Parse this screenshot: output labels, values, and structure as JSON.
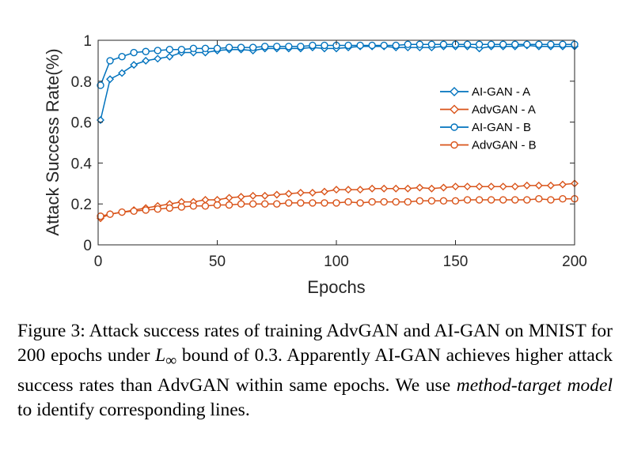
{
  "chart_data": {
    "type": "line",
    "xlabel": "Epochs",
    "ylabel": "Attack Success Rate(%)",
    "xlim": [
      0,
      200
    ],
    "ylim": [
      0,
      1
    ],
    "xticks": [
      "0",
      "50",
      "100",
      "150",
      "200"
    ],
    "yticks": [
      "0",
      "0.2",
      "0.4",
      "0.6",
      "0.8",
      "1"
    ],
    "grid": false,
    "legend_position": "right",
    "x": [
      1,
      5,
      10,
      15,
      20,
      25,
      30,
      35,
      40,
      45,
      50,
      55,
      60,
      65,
      70,
      75,
      80,
      85,
      90,
      95,
      100,
      105,
      110,
      115,
      120,
      125,
      130,
      135,
      140,
      145,
      150,
      155,
      160,
      165,
      170,
      175,
      180,
      185,
      190,
      195,
      200
    ],
    "series": [
      {
        "name": "AI-GAN - A",
        "marker": "diamond",
        "color": "#0072BD",
        "values": [
          0.61,
          0.81,
          0.84,
          0.88,
          0.9,
          0.91,
          0.92,
          0.94,
          0.94,
          0.94,
          0.95,
          0.955,
          0.955,
          0.95,
          0.96,
          0.96,
          0.96,
          0.96,
          0.965,
          0.96,
          0.96,
          0.965,
          0.97,
          0.97,
          0.97,
          0.965,
          0.965,
          0.965,
          0.965,
          0.97,
          0.97,
          0.97,
          0.96,
          0.97,
          0.97,
          0.97,
          0.975,
          0.97,
          0.97,
          0.97,
          0.97
        ]
      },
      {
        "name": "AdvGAN - A",
        "marker": "diamond",
        "color": "#D95319",
        "values": [
          0.13,
          0.15,
          0.16,
          0.17,
          0.18,
          0.19,
          0.2,
          0.21,
          0.21,
          0.22,
          0.22,
          0.23,
          0.235,
          0.24,
          0.24,
          0.245,
          0.25,
          0.255,
          0.255,
          0.26,
          0.27,
          0.27,
          0.27,
          0.275,
          0.275,
          0.275,
          0.275,
          0.28,
          0.275,
          0.28,
          0.285,
          0.285,
          0.285,
          0.285,
          0.285,
          0.285,
          0.29,
          0.29,
          0.29,
          0.295,
          0.3
        ]
      },
      {
        "name": "AI-GAN - B",
        "marker": "circle",
        "color": "#0072BD",
        "values": [
          0.78,
          0.9,
          0.92,
          0.94,
          0.945,
          0.95,
          0.955,
          0.955,
          0.96,
          0.96,
          0.96,
          0.965,
          0.965,
          0.965,
          0.97,
          0.97,
          0.97,
          0.97,
          0.975,
          0.975,
          0.975,
          0.975,
          0.975,
          0.975,
          0.975,
          0.975,
          0.98,
          0.98,
          0.98,
          0.98,
          0.98,
          0.98,
          0.98,
          0.98,
          0.98,
          0.98,
          0.98,
          0.98,
          0.98,
          0.98,
          0.98
        ]
      },
      {
        "name": "AdvGAN - B",
        "marker": "circle",
        "color": "#D95319",
        "values": [
          0.14,
          0.15,
          0.16,
          0.165,
          0.17,
          0.175,
          0.18,
          0.185,
          0.19,
          0.19,
          0.195,
          0.195,
          0.2,
          0.2,
          0.2,
          0.2,
          0.205,
          0.205,
          0.205,
          0.205,
          0.205,
          0.21,
          0.205,
          0.21,
          0.21,
          0.21,
          0.21,
          0.215,
          0.215,
          0.215,
          0.215,
          0.22,
          0.22,
          0.22,
          0.22,
          0.22,
          0.22,
          0.225,
          0.22,
          0.225,
          0.225
        ]
      }
    ]
  },
  "caption": {
    "label": "Figure 3:",
    "part1": " Attack success rates of training AdvGAN and AI-GAN on MNIST for 200 epochs under ",
    "math_L": "L",
    "math_sub": "∞",
    "part2": " bound of 0.3. Apparently AI-GAN achieves higher attack success rates than AdvGAN within same epochs. We use ",
    "emphasis": "method-target model",
    "part3": " to identify corresponding lines."
  }
}
